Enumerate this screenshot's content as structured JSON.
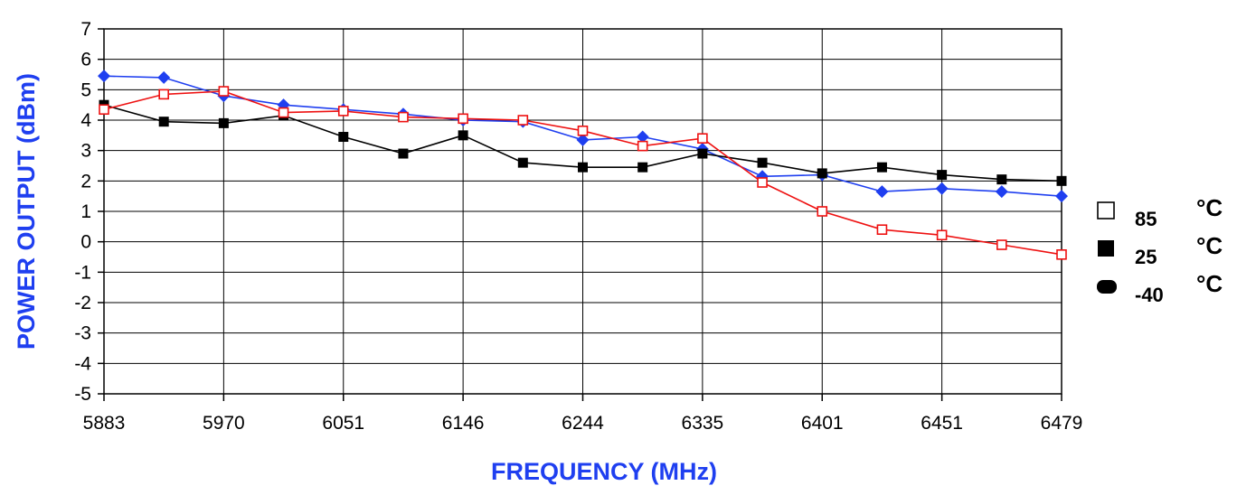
{
  "chart_data": {
    "type": "line",
    "xlabel": "FREQUENCY (MHz)",
    "ylabel": "POWER OUTPUT (dBm)",
    "ylim": [
      -5,
      7
    ],
    "y_ticks": [
      -5,
      -4,
      -3,
      -2,
      -1,
      0,
      1,
      2,
      3,
      4,
      5,
      6,
      7
    ],
    "categories": [
      "5883",
      "",
      "5970",
      "",
      "6051",
      "",
      "6146",
      "",
      "6244",
      "",
      "6335",
      "",
      "6401",
      "",
      "6451",
      "",
      "6479"
    ],
    "grid": true,
    "legend_position": "right",
    "series": [
      {
        "name": "85",
        "unit": "°C",
        "color": "#ee1111",
        "marker": "hollow-square",
        "values": [
          4.35,
          4.85,
          4.95,
          4.25,
          4.3,
          4.1,
          4.05,
          4.0,
          3.65,
          3.15,
          3.4,
          1.95,
          1.0,
          0.4,
          0.22,
          -0.1,
          -0.42
        ]
      },
      {
        "name": "25",
        "unit": "°C",
        "color": "#000000",
        "marker": "filled-square",
        "values": [
          4.5,
          3.95,
          3.9,
          4.15,
          3.45,
          2.9,
          3.5,
          2.6,
          2.45,
          2.45,
          2.9,
          2.6,
          2.25,
          2.45,
          2.2,
          2.05,
          2.0
        ]
      },
      {
        "name": "-40",
        "unit": "°C",
        "color": "#1f3ff0",
        "marker": "diamond",
        "values": [
          5.45,
          5.4,
          4.8,
          4.5,
          4.35,
          4.2,
          4.0,
          3.95,
          3.35,
          3.45,
          3.05,
          2.15,
          2.2,
          1.65,
          1.75,
          1.65,
          1.5
        ]
      }
    ]
  }
}
